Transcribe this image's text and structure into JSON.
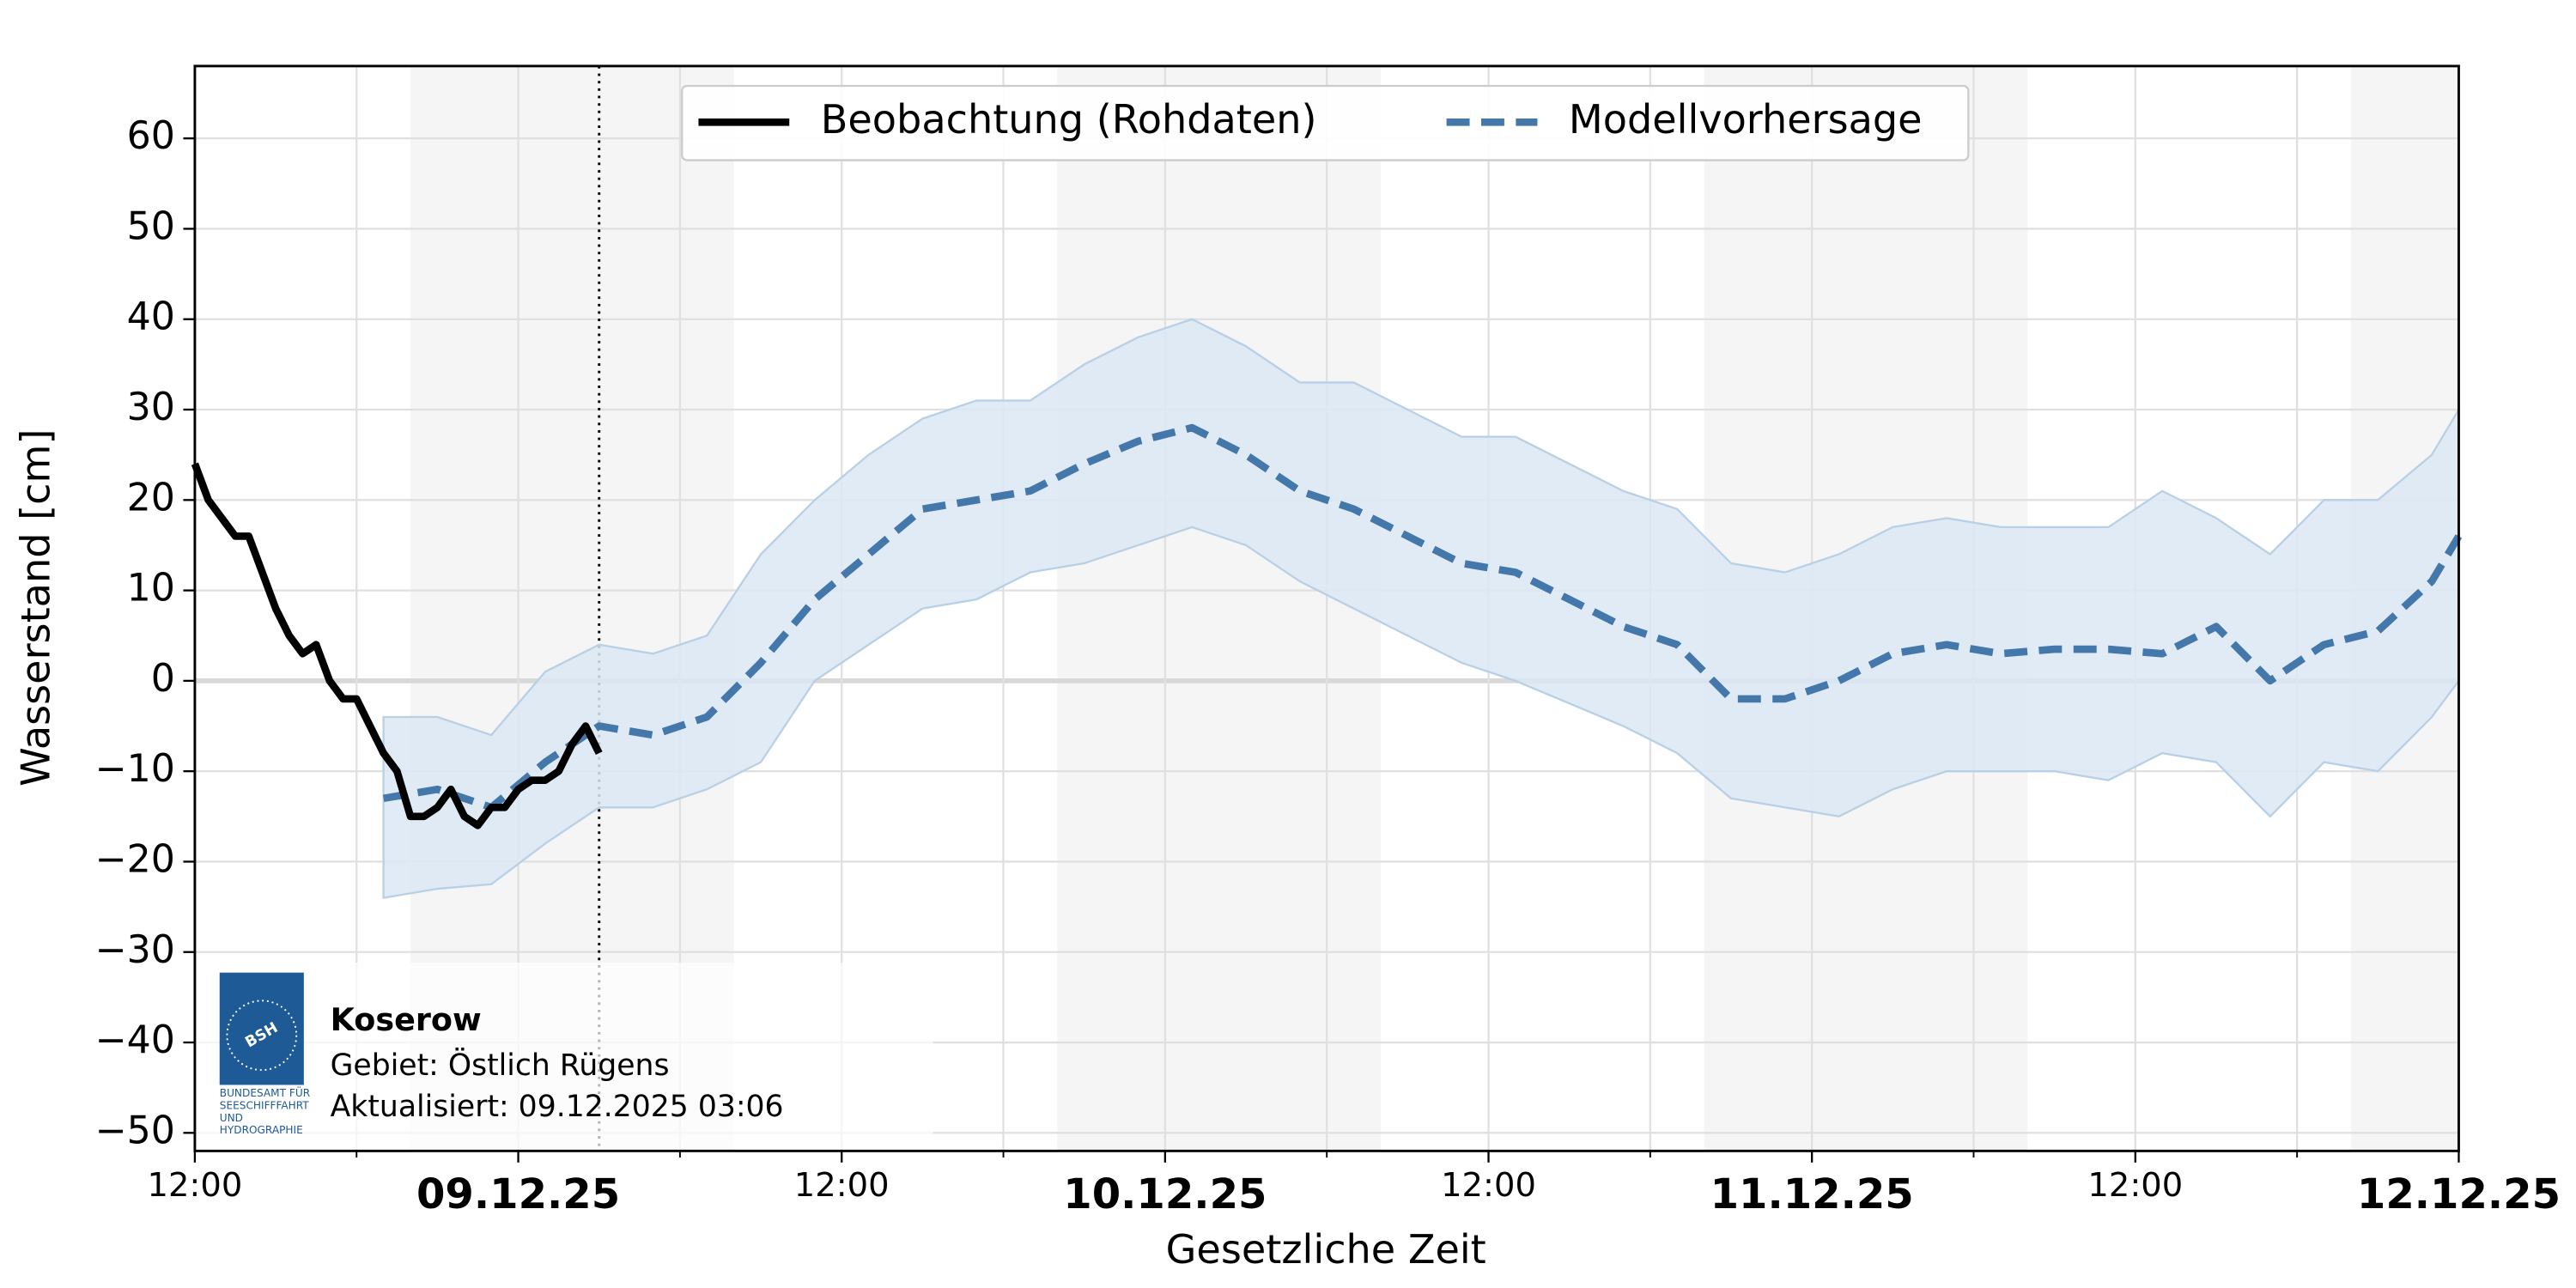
{
  "chart_data": {
    "type": "line",
    "xlabel": "Gesetzliche Zeit",
    "ylabel": "Wasserstand [cm]",
    "xlim": [
      "08.12.25 12:00",
      "12.12.25 00:00"
    ],
    "ylim": [
      -52,
      68
    ],
    "xticks": [
      {
        "value": "08.12.25 12:00",
        "label": "12:00"
      },
      {
        "value": "09.12.25 00:00",
        "label": "09.12.25"
      },
      {
        "value": "09.12.25 12:00",
        "label": "12:00"
      },
      {
        "value": "10.12.25 00:00",
        "label": "10.12.25"
      },
      {
        "value": "10.12.25 12:00",
        "label": "12:00"
      },
      {
        "value": "11.12.25 00:00",
        "label": "11.12.25"
      },
      {
        "value": "11.12.25 12:00",
        "label": "12:00"
      },
      {
        "value": "12.12.25 00:00",
        "label": "12.12.25"
      }
    ],
    "xminorticks": [
      "08.12.25 18:00",
      "09.12.25 06:00",
      "09.12.25 18:00",
      "10.12.25 06:00",
      "10.12.25 18:00",
      "11.12.25 06:00",
      "11.12.25 18:00"
    ],
    "yticks": [
      {
        "value": -50,
        "label": "−50"
      },
      {
        "value": -40,
        "label": "−40"
      },
      {
        "value": -30,
        "label": "−30"
      },
      {
        "value": -20,
        "label": "−20"
      },
      {
        "value": -10,
        "label": "−10"
      },
      0,
      10,
      20,
      30,
      40,
      50,
      60
    ],
    "grid": true,
    "shaded_periods": [
      [
        "08.12.25 20:00",
        "09.12.25 08:00"
      ],
      [
        "09.12.25 20:00",
        "10.12.25 08:00"
      ],
      [
        "10.12.25 20:00",
        "11.12.25 08:00"
      ],
      [
        "11.12.25 20:00",
        "12.12.25 00:00"
      ]
    ],
    "now_line": "09.12.25 03:00",
    "legend": "upper center",
    "series": [
      {
        "name": "Beobachtung (Rohdaten)",
        "color": "#000000",
        "style": "solid",
        "x": [
          "08.12.25 12:00",
          "08.12.25 12:30",
          "08.12.25 13:00",
          "08.12.25 13:30",
          "08.12.25 14:00",
          "08.12.25 14:30",
          "08.12.25 15:00",
          "08.12.25 15:30",
          "08.12.25 16:00",
          "08.12.25 16:30",
          "08.12.25 17:00",
          "08.12.25 17:30",
          "08.12.25 18:00",
          "08.12.25 18:30",
          "08.12.25 19:00",
          "08.12.25 19:30",
          "08.12.25 20:00",
          "08.12.25 20:30",
          "08.12.25 21:00",
          "08.12.25 21:30",
          "08.12.25 22:00",
          "08.12.25 22:30",
          "08.12.25 23:00",
          "08.12.25 23:30",
          "09.12.25 00:00",
          "09.12.25 00:30",
          "09.12.25 01:00",
          "09.12.25 01:30",
          "09.12.25 02:00",
          "09.12.25 02:30",
          "09.12.25 03:00"
        ],
        "values": [
          24,
          20,
          18,
          16,
          16,
          12,
          8,
          5,
          3,
          4,
          0,
          -2,
          -2,
          -5,
          -8,
          -10,
          -15,
          -15,
          -14,
          -12,
          -15,
          -16,
          -14,
          -14,
          -12,
          -11,
          -11,
          -10,
          -7,
          -5,
          -8
        ]
      },
      {
        "name": "Modellvorhersage",
        "color": "#4477aa",
        "band_color": "#dce8f3",
        "style": "dashed",
        "x": [
          "08.12.25 19:00",
          "08.12.25 21:00",
          "08.12.25 23:00",
          "09.12.25 01:00",
          "09.12.25 03:00",
          "09.12.25 05:00",
          "09.12.25 07:00",
          "09.12.25 09:00",
          "09.12.25 11:00",
          "09.12.25 13:00",
          "09.12.25 15:00",
          "09.12.25 17:00",
          "09.12.25 19:00",
          "09.12.25 21:00",
          "09.12.25 23:00",
          "10.12.25 01:00",
          "10.12.25 03:00",
          "10.12.25 05:00",
          "10.12.25 07:00",
          "10.12.25 09:00",
          "10.12.25 11:00",
          "10.12.25 13:00",
          "10.12.25 15:00",
          "10.12.25 17:00",
          "10.12.25 19:00",
          "10.12.25 21:00",
          "10.12.25 23:00",
          "11.12.25 01:00",
          "11.12.25 03:00",
          "11.12.25 05:00",
          "11.12.25 07:00",
          "11.12.25 09:00",
          "11.12.25 11:00",
          "11.12.25 13:00",
          "11.12.25 15:00",
          "11.12.25 17:00",
          "11.12.25 19:00",
          "11.12.25 21:00",
          "11.12.25 23:00",
          "12.12.25 00:00"
        ],
        "values": [
          -13,
          -12,
          -14,
          -9,
          -5,
          -6,
          -4,
          2,
          9,
          14,
          19,
          20,
          21,
          24,
          26.5,
          28,
          25,
          21,
          19,
          16,
          13,
          12,
          9,
          6,
          4,
          -2,
          -2,
          0,
          3,
          4,
          3,
          3.5,
          3.5,
          3,
          6,
          0,
          4,
          5.5,
          11,
          16
        ],
        "upper": [
          -4,
          -4,
          -6,
          1,
          4,
          3,
          5,
          14,
          20,
          25,
          29,
          31,
          31,
          35,
          38,
          40,
          37,
          33,
          33,
          30,
          27,
          27,
          24,
          21,
          19,
          13,
          12,
          14,
          17,
          18,
          17,
          17,
          17,
          21,
          18,
          14,
          20,
          20,
          25,
          30
        ],
        "lower": [
          -24,
          -23,
          -22.5,
          -18,
          -14,
          -14,
          -12,
          -9,
          0,
          4,
          8,
          9,
          12,
          13,
          15,
          17,
          15,
          11,
          8,
          5,
          2,
          0,
          -2.5,
          -5,
          -8,
          -13,
          -14,
          -15,
          -12,
          -10,
          -10,
          -10,
          -11,
          -8,
          -9,
          -15,
          -9,
          -10,
          -4,
          0
        ]
      }
    ],
    "station": {
      "name": "Koserow",
      "area": "Gebiet: Östlich Rügens",
      "updated": "Aktualisiert: 09.12.2025 03:06",
      "logo": {
        "text": "BSH",
        "caption": [
          "BUNDESAMT FÜR",
          "SEESCHIFFFAHRT",
          "UND",
          "HYDROGRAPHIE"
        ]
      }
    }
  }
}
